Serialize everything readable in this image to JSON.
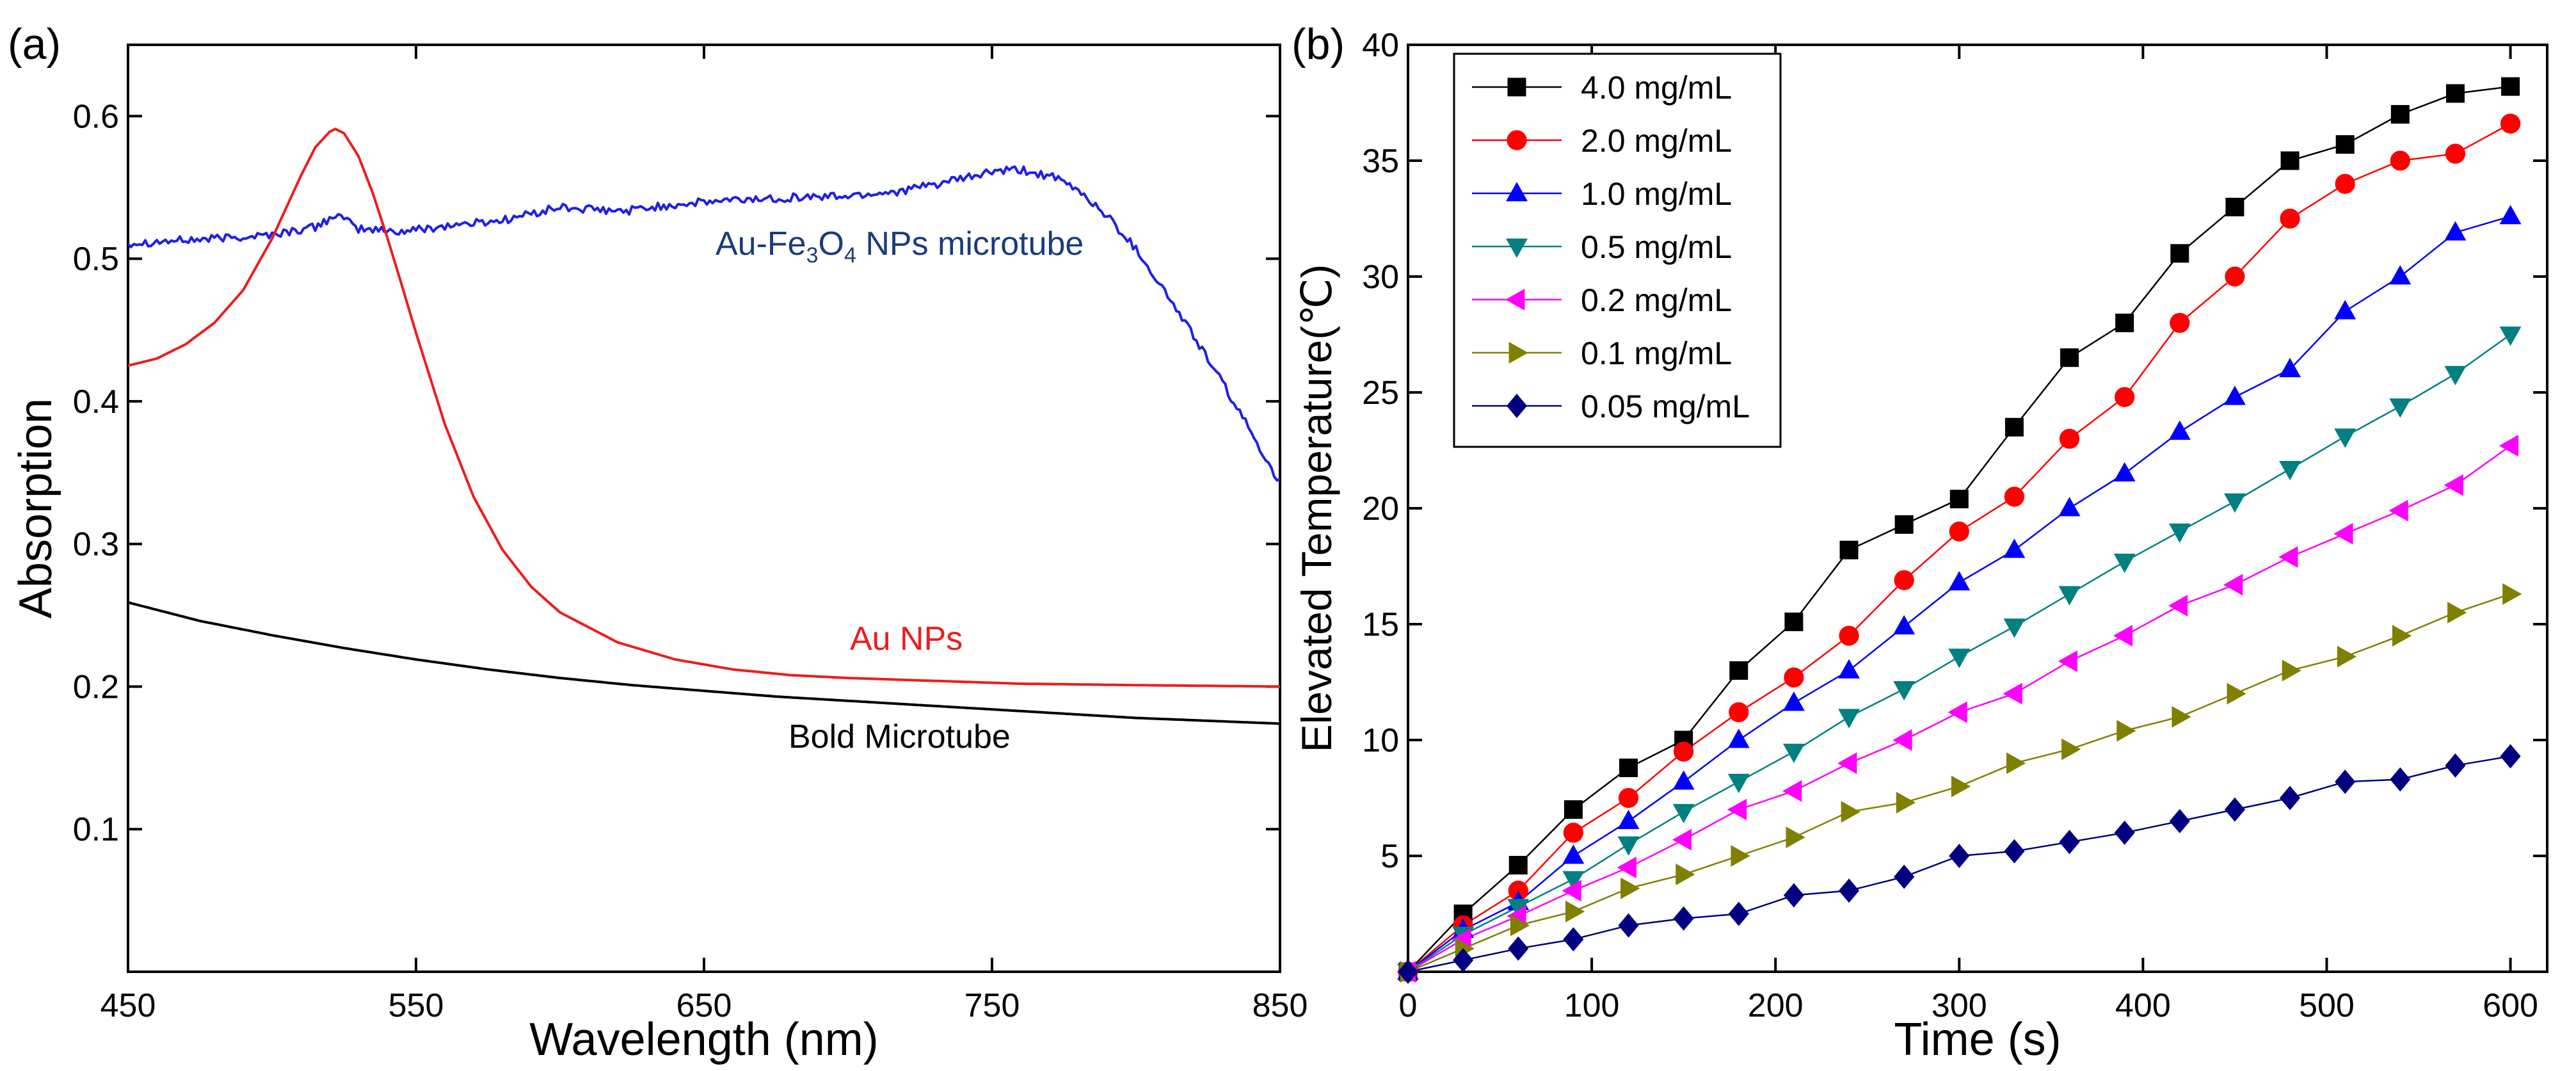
{
  "chart_data": [
    {
      "type": "line",
      "panel_label": "(a)",
      "xlabel": "Wavelength (nm)",
      "ylabel": "Absorption",
      "xlim": [
        450,
        850
      ],
      "ylim": [
        0.0,
        0.65
      ],
      "xticks": [
        450,
        550,
        650,
        750,
        850
      ],
      "yticks": [
        0.1,
        0.2,
        0.3,
        0.4,
        0.5,
        0.6
      ],
      "xtick_labels": [
        "450",
        "550",
        "650",
        "750",
        "850"
      ],
      "ytick_labels": [
        "0.1",
        "0.2",
        "0.3",
        "0.4",
        "0.5",
        "0.6"
      ],
      "grid": false,
      "series": [
        {
          "name": "Au-Fe3O4 NPs microtube",
          "label_main": "Au-Fe",
          "label_sub1": "3",
          "label_mid": "O",
          "label_sub2": "4",
          "label_tail": " NPs microtube",
          "color": "#1f1fe8",
          "label_color": "#1a3c7a",
          "noise": 0.003,
          "x": [
            450,
            480,
            500,
            515,
            522,
            530,
            545,
            560,
            580,
            600,
            620,
            640,
            660,
            680,
            700,
            720,
            740,
            750,
            760,
            770,
            780,
            790,
            800,
            810,
            820,
            830,
            840,
            850
          ],
          "values": [
            0.511,
            0.514,
            0.517,
            0.522,
            0.531,
            0.521,
            0.519,
            0.523,
            0.527,
            0.536,
            0.533,
            0.538,
            0.541,
            0.543,
            0.544,
            0.548,
            0.556,
            0.561,
            0.562,
            0.558,
            0.548,
            0.53,
            0.507,
            0.477,
            0.446,
            0.413,
            0.378,
            0.343
          ]
        },
        {
          "name": "Au NPs",
          "color": "#ee1c1c",
          "label_color": "#ee1c1c",
          "noise": 0,
          "x": [
            450,
            460,
            470,
            480,
            490,
            500,
            505,
            510,
            515,
            520,
            522,
            525,
            530,
            535,
            540,
            545,
            550,
            560,
            570,
            580,
            590,
            600,
            620,
            640,
            660,
            680,
            700,
            730,
            760,
            800,
            850
          ],
          "values": [
            0.425,
            0.43,
            0.44,
            0.455,
            0.478,
            0.514,
            0.536,
            0.558,
            0.578,
            0.589,
            0.591,
            0.588,
            0.572,
            0.546,
            0.515,
            0.482,
            0.448,
            0.384,
            0.333,
            0.296,
            0.27,
            0.252,
            0.231,
            0.219,
            0.212,
            0.208,
            0.206,
            0.204,
            0.202,
            0.201,
            0.2
          ]
        },
        {
          "name": "Bold Microtube",
          "color": "#000000",
          "label_color": "#000000",
          "noise": 0,
          "x": [
            450,
            475,
            500,
            525,
            550,
            575,
            600,
            625,
            650,
            675,
            700,
            725,
            750,
            775,
            800,
            825,
            850
          ],
          "values": [
            0.259,
            0.246,
            0.236,
            0.227,
            0.219,
            0.212,
            0.206,
            0.201,
            0.197,
            0.193,
            0.19,
            0.187,
            0.184,
            0.181,
            0.178,
            0.176,
            0.174
          ]
        }
      ]
    },
    {
      "type": "line",
      "panel_label": "(b)",
      "xlabel": "Time (s)",
      "ylabel": "Elevated Temperature(℃)",
      "xlim": [
        0,
        620
      ],
      "ylim": [
        0,
        40
      ],
      "xticks": [
        0,
        100,
        200,
        300,
        400,
        500,
        600
      ],
      "yticks": [
        5,
        10,
        15,
        20,
        25,
        30,
        35,
        40
      ],
      "xtick_labels": [
        "0",
        "100",
        "200",
        "300",
        "400",
        "500",
        "600"
      ],
      "ytick_labels": [
        "5",
        "10",
        "15",
        "20",
        "25",
        "30",
        "35",
        "40"
      ],
      "grid": false,
      "legend_position": "top-left",
      "x": [
        0,
        30,
        60,
        90,
        120,
        150,
        180,
        210,
        240,
        270,
        300,
        330,
        360,
        390,
        420,
        450,
        480,
        510,
        540,
        570,
        600
      ],
      "series": [
        {
          "name": "4.0 mg/mL",
          "color": "#000000",
          "marker": "square",
          "values": [
            0,
            2.5,
            4.6,
            7.0,
            8.8,
            10.0,
            13.0,
            15.1,
            18.2,
            19.3,
            20.4,
            23.5,
            26.5,
            28.0,
            31.0,
            33.0,
            35.0,
            35.7,
            37.0,
            37.9,
            38.2
          ]
        },
        {
          "name": "2.0 mg/mL",
          "color": "#ff0000",
          "marker": "circle",
          "values": [
            0,
            2.0,
            3.5,
            6.0,
            7.5,
            9.5,
            11.2,
            12.7,
            14.5,
            16.9,
            19.0,
            20.5,
            23.0,
            24.8,
            28.0,
            30.0,
            32.5,
            34.0,
            35.0,
            35.3,
            36.6
          ]
        },
        {
          "name": "1.0 mg/mL",
          "color": "#0000ff",
          "marker": "triangle-up",
          "values": [
            0,
            1.8,
            3.0,
            5.0,
            6.5,
            8.2,
            10.0,
            11.6,
            13.0,
            14.9,
            16.8,
            18.2,
            20.0,
            21.5,
            23.3,
            24.8,
            26.0,
            28.5,
            30.0,
            31.9,
            32.6
          ]
        },
        {
          "name": "0.5 mg/mL",
          "color": "#008080",
          "marker": "triangle-down",
          "values": [
            0,
            1.6,
            2.8,
            4.0,
            5.5,
            6.9,
            8.2,
            9.5,
            11.0,
            12.2,
            13.6,
            14.9,
            16.3,
            17.7,
            19.0,
            20.3,
            21.7,
            23.1,
            24.4,
            25.8,
            27.5
          ]
        },
        {
          "name": "0.2 mg/mL",
          "color": "#ff00ff",
          "marker": "triangle-left",
          "values": [
            0,
            1.4,
            2.4,
            3.5,
            4.5,
            5.7,
            7.0,
            7.8,
            9.0,
            10.0,
            11.2,
            12.0,
            13.4,
            14.5,
            15.8,
            16.7,
            17.9,
            18.9,
            19.9,
            21.0,
            22.7
          ]
        },
        {
          "name": "0.1 mg/mL",
          "color": "#808000",
          "marker": "triangle-right",
          "values": [
            0,
            1.0,
            2.0,
            2.6,
            3.6,
            4.2,
            5.0,
            5.8,
            6.9,
            7.3,
            8.0,
            9.0,
            9.6,
            10.4,
            11.0,
            12.0,
            13.0,
            13.6,
            14.5,
            15.5,
            16.3
          ]
        },
        {
          "name": "0.05 mg/mL",
          "color": "#000080",
          "marker": "diamond",
          "values": [
            0,
            0.5,
            1.0,
            1.4,
            2.0,
            2.3,
            2.5,
            3.3,
            3.5,
            4.1,
            5.0,
            5.2,
            5.6,
            6.0,
            6.5,
            7.0,
            7.5,
            8.2,
            8.3,
            8.9,
            9.3
          ]
        }
      ]
    }
  ]
}
